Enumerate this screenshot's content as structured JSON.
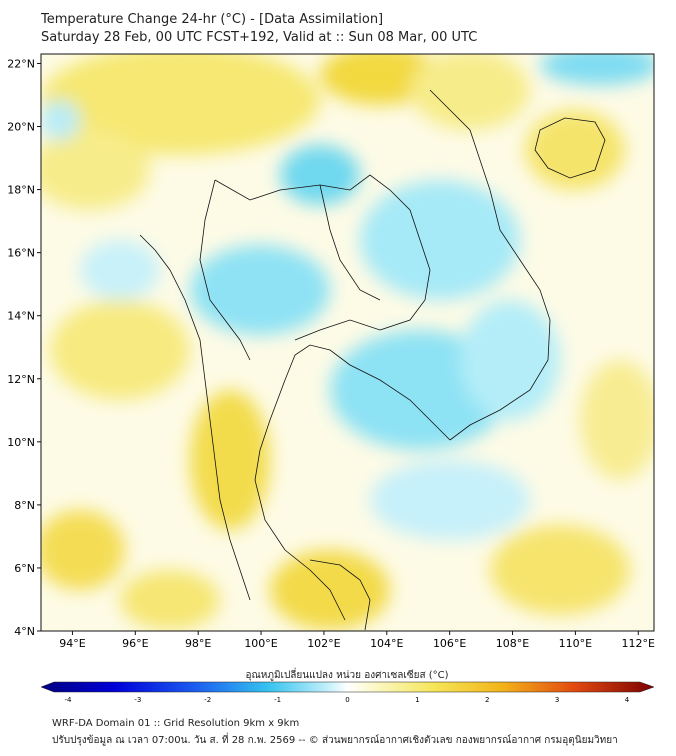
{
  "title": {
    "line1": "Temperature Change 24-hr (°C) - [Data Assimilation]",
    "line2": "Saturday 28 Feb, 00 UTC FCST+192, Valid at :: Sun 08 Mar, 00 UTC"
  },
  "map": {
    "lon_range": [
      93,
      112.5
    ],
    "lat_range": [
      4,
      22.3
    ],
    "lon_ticks": [
      "94°E",
      "96°E",
      "98°E",
      "100°E",
      "102°E",
      "104°E",
      "106°E",
      "108°E",
      "110°E",
      "112°E"
    ],
    "lat_ticks": [
      "4°N",
      "6°N",
      "8°N",
      "10°N",
      "12°N",
      "14°N",
      "16°N",
      "18°N",
      "20°N",
      "22°N"
    ],
    "fill_colors": {
      "yellow": "#f3e14c",
      "light_yellow": "#fbf7c0",
      "cyan": "#4fd5ee",
      "light_cyan": "#bff0fa"
    }
  },
  "colorbar": {
    "label": "อุณหภูมิเปลี่ยนแปลง หน่วย องศาเซลเซียส (°C)",
    "ticks": [
      "-4",
      "-3",
      "-2",
      "-1",
      "0",
      "1",
      "2",
      "3",
      "4"
    ],
    "range": [
      -4,
      4
    ]
  },
  "footer": {
    "line1": "WRF-DA Domain 01 :: Grid Resolution 9km x 9km",
    "line2": "ปรับปรุงข้อมูล ณ เวลา 07:00น. วัน ส. ที่ 28 ก.พ. 2569 -- © ส่วนพยากรณ์อากาศเชิงตัวเลข กองพยากรณ์อากาศ กรมอุตุนิยมวิทยา"
  }
}
